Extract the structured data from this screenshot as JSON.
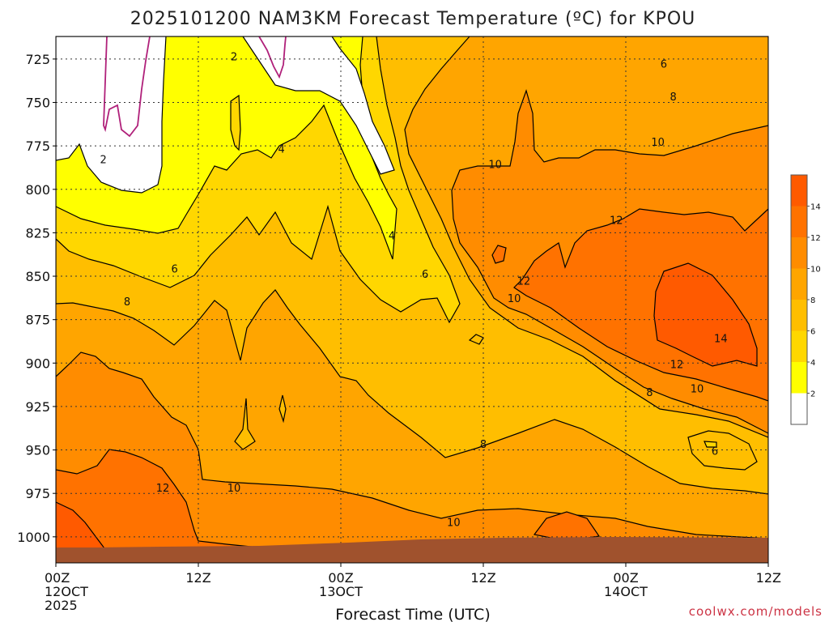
{
  "chart_data": {
    "type": "heatmap",
    "title": "2025101200 NAM3KM Forecast Temperature (ºC) for KPOU",
    "xlabel": "Forecast Time (UTC)",
    "ylabel": "",
    "credit": "coolwx.com/models",
    "x_ticks": [
      {
        "hour": 0,
        "line1": "00Z",
        "line2": "12OCT",
        "line3": "2025"
      },
      {
        "hour": 12,
        "line1": "12Z",
        "line2": "",
        "line3": ""
      },
      {
        "hour": 24,
        "line1": "00Z",
        "line2": "13OCT",
        "line3": ""
      },
      {
        "hour": 36,
        "line1": "12Z",
        "line2": "",
        "line3": ""
      },
      {
        "hour": 48,
        "line1": "00Z",
        "line2": "14OCT",
        "line3": ""
      },
      {
        "hour": 60,
        "line1": "12Z",
        "line2": "",
        "line3": ""
      }
    ],
    "xlim": [
      0,
      60
    ],
    "y_ticks": [
      725,
      750,
      775,
      800,
      825,
      850,
      875,
      900,
      925,
      950,
      975,
      1000
    ],
    "ylim": [
      712,
      1015
    ],
    "colorbar": {
      "levels": [
        0,
        2,
        4,
        6,
        8,
        10,
        12,
        14,
        16
      ],
      "tick_labels": [
        "2",
        "4",
        "6",
        "8",
        "10",
        "12",
        "14"
      ],
      "colors": [
        "#ffffff",
        "#ffff00",
        "#ffd700",
        "#ffbe00",
        "#ffa500",
        "#ff8c00",
        "#ff7200",
        "#ff5a00"
      ]
    },
    "terrain_color": "#a0522d",
    "freezing_line_color": "#b0207a",
    "contour_levels": [
      2,
      4,
      6,
      8,
      10,
      12,
      14
    ],
    "contour_labels": [
      {
        "text": "2",
        "hour": 15.0,
        "p": 724
      },
      {
        "text": "2",
        "hour": 4.0,
        "p": 783
      },
      {
        "text": "4",
        "hour": 19.0,
        "p": 777
      },
      {
        "text": "4",
        "hour": 28.3,
        "p": 827
      },
      {
        "text": "6",
        "hour": 10.0,
        "p": 846
      },
      {
        "text": "6",
        "hour": 31.1,
        "p": 849
      },
      {
        "text": "6",
        "hour": 51.2,
        "p": 728
      },
      {
        "text": "6",
        "hour": 55.5,
        "p": 951
      },
      {
        "text": "8",
        "hour": 6.0,
        "p": 865
      },
      {
        "text": "8",
        "hour": 36.0,
        "p": 947
      },
      {
        "text": "8",
        "hour": 52.0,
        "p": 747
      },
      {
        "text": "8",
        "hour": 50.0,
        "p": 917
      },
      {
        "text": "10",
        "hour": 15.0,
        "p": 972
      },
      {
        "text": "10",
        "hour": 33.5,
        "p": 992
      },
      {
        "text": "10",
        "hour": 37.0,
        "p": 786
      },
      {
        "text": "10",
        "hour": 38.6,
        "p": 863
      },
      {
        "text": "10",
        "hour": 50.7,
        "p": 773
      },
      {
        "text": "10",
        "hour": 54.0,
        "p": 915
      },
      {
        "text": "12",
        "hour": 9.0,
        "p": 972
      },
      {
        "text": "12",
        "hour": 39.4,
        "p": 853
      },
      {
        "text": "12",
        "hour": 47.2,
        "p": 818
      },
      {
        "text": "12",
        "hour": 52.3,
        "p": 901
      },
      {
        "text": "14",
        "hour": 56.0,
        "p": 886
      }
    ]
  }
}
